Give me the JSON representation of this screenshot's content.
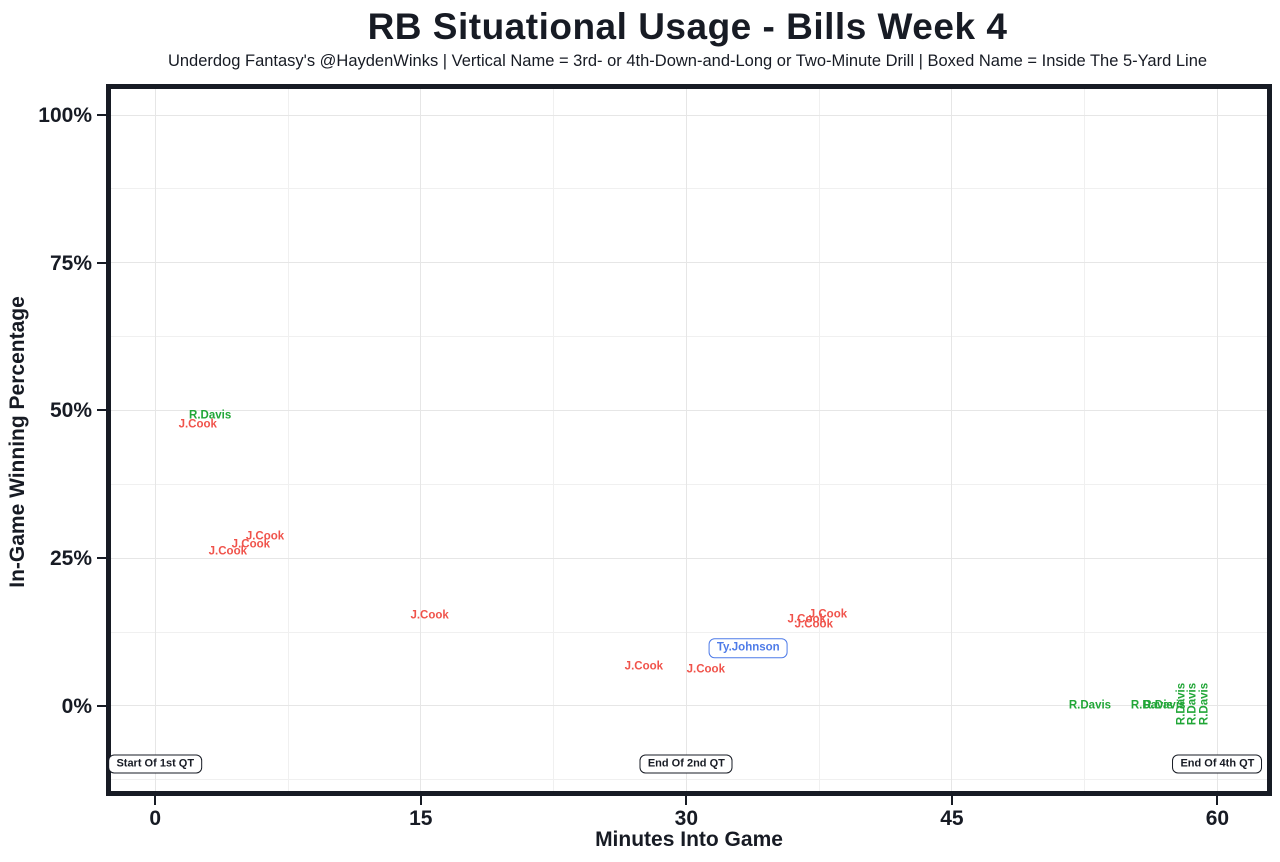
{
  "header": {
    "title": "RB Situational Usage - Bills Week 4",
    "subtitle": "Underdog Fantasy's @HaydenWinks | Vertical Name = 3rd- or 4th-Down-and-Long or Two-Minute Drill | Boxed Name = Inside The 5-Yard Line"
  },
  "chart_data": {
    "type": "scatter",
    "title": "RB Situational Usage - Bills Week 4",
    "subtitle": "Underdog Fantasy's @HaydenWinks | Vertical Name = 3rd- or 4th-Down-and-Long or Two-Minute Drill | Boxed Name = Inside The 5-Yard Line",
    "xlabel": "Minutes Into Game",
    "ylabel": "In-Game Winning Percentage",
    "xlim": [
      -2.5,
      62.8
    ],
    "ylim": [
      -14.4,
      104.4
    ],
    "x_ticks": [
      {
        "value": 0,
        "label": "0"
      },
      {
        "value": 15,
        "label": "15"
      },
      {
        "value": 30,
        "label": "30"
      },
      {
        "value": 45,
        "label": "45"
      },
      {
        "value": 60,
        "label": "60"
      }
    ],
    "y_ticks": [
      {
        "value": 0,
        "label": "0%"
      },
      {
        "value": 25,
        "label": "25%"
      },
      {
        "value": 50,
        "label": "50%"
      },
      {
        "value": 75,
        "label": "75%"
      },
      {
        "value": 100,
        "label": "100%"
      }
    ],
    "x_minor_gridlines": [
      7.5,
      22.5,
      37.5,
      52.5
    ],
    "y_minor_gridlines": [
      -12.5,
      12.5,
      37.5,
      62.5,
      87.5
    ],
    "grid": true,
    "legend": "none",
    "colors": {
      "J.Cook": "#F0534B",
      "R.Davis": "#21A637",
      "Ty.Johnson": "#4E7BE8",
      "annotation": "#171B24"
    },
    "points": [
      {
        "name": "J.Cook",
        "x": 2.4,
        "y": 47.5,
        "orientation": "horizontal",
        "boxed": false
      },
      {
        "name": "R.Davis",
        "x": 3.1,
        "y": 49.0,
        "orientation": "horizontal",
        "boxed": false
      },
      {
        "name": "J.Cook",
        "x": 4.1,
        "y": 26.0,
        "orientation": "horizontal",
        "boxed": false
      },
      {
        "name": "J.Cook",
        "x": 5.4,
        "y": 27.3,
        "orientation": "horizontal",
        "boxed": false
      },
      {
        "name": "J.Cook",
        "x": 6.2,
        "y": 28.6,
        "orientation": "horizontal",
        "boxed": false
      },
      {
        "name": "J.Cook",
        "x": 15.5,
        "y": 15.2,
        "orientation": "horizontal",
        "boxed": false
      },
      {
        "name": "J.Cook",
        "x": 27.6,
        "y": 6.6,
        "orientation": "horizontal",
        "boxed": false
      },
      {
        "name": "J.Cook",
        "x": 31.1,
        "y": 6.1,
        "orientation": "horizontal",
        "boxed": false
      },
      {
        "name": "Ty.Johnson",
        "x": 33.5,
        "y": 9.8,
        "orientation": "horizontal",
        "boxed": true
      },
      {
        "name": "J.Cook",
        "x": 36.8,
        "y": 14.6,
        "orientation": "horizontal",
        "boxed": false
      },
      {
        "name": "J.Cook",
        "x": 38.0,
        "y": 15.4,
        "orientation": "horizontal",
        "boxed": false
      },
      {
        "name": "J.Cook",
        "x": 37.2,
        "y": 13.7,
        "orientation": "horizontal",
        "boxed": false
      },
      {
        "name": "R.Davis",
        "x": 52.8,
        "y": 0.0,
        "orientation": "horizontal",
        "boxed": false
      },
      {
        "name": "R.Davis",
        "x": 56.3,
        "y": 0.0,
        "orientation": "horizontal",
        "boxed": false
      },
      {
        "name": "R.Davis",
        "x": 57.0,
        "y": 0.0,
        "orientation": "horizontal",
        "boxed": false
      },
      {
        "name": "R.Davis",
        "x": 58.0,
        "y": 0.3,
        "orientation": "vertical",
        "boxed": false
      },
      {
        "name": "R.Davis",
        "x": 58.6,
        "y": 0.3,
        "orientation": "vertical",
        "boxed": false
      },
      {
        "name": "R.Davis",
        "x": 59.3,
        "y": 0.3,
        "orientation": "vertical",
        "boxed": false
      }
    ],
    "annotations": [
      {
        "label": "Start Of 1st QT",
        "x": 0,
        "y": -9.8
      },
      {
        "label": "End Of 2nd QT",
        "x": 30,
        "y": -9.8
      },
      {
        "label": "End Of 4th QT",
        "x": 60,
        "y": -9.8
      }
    ]
  }
}
